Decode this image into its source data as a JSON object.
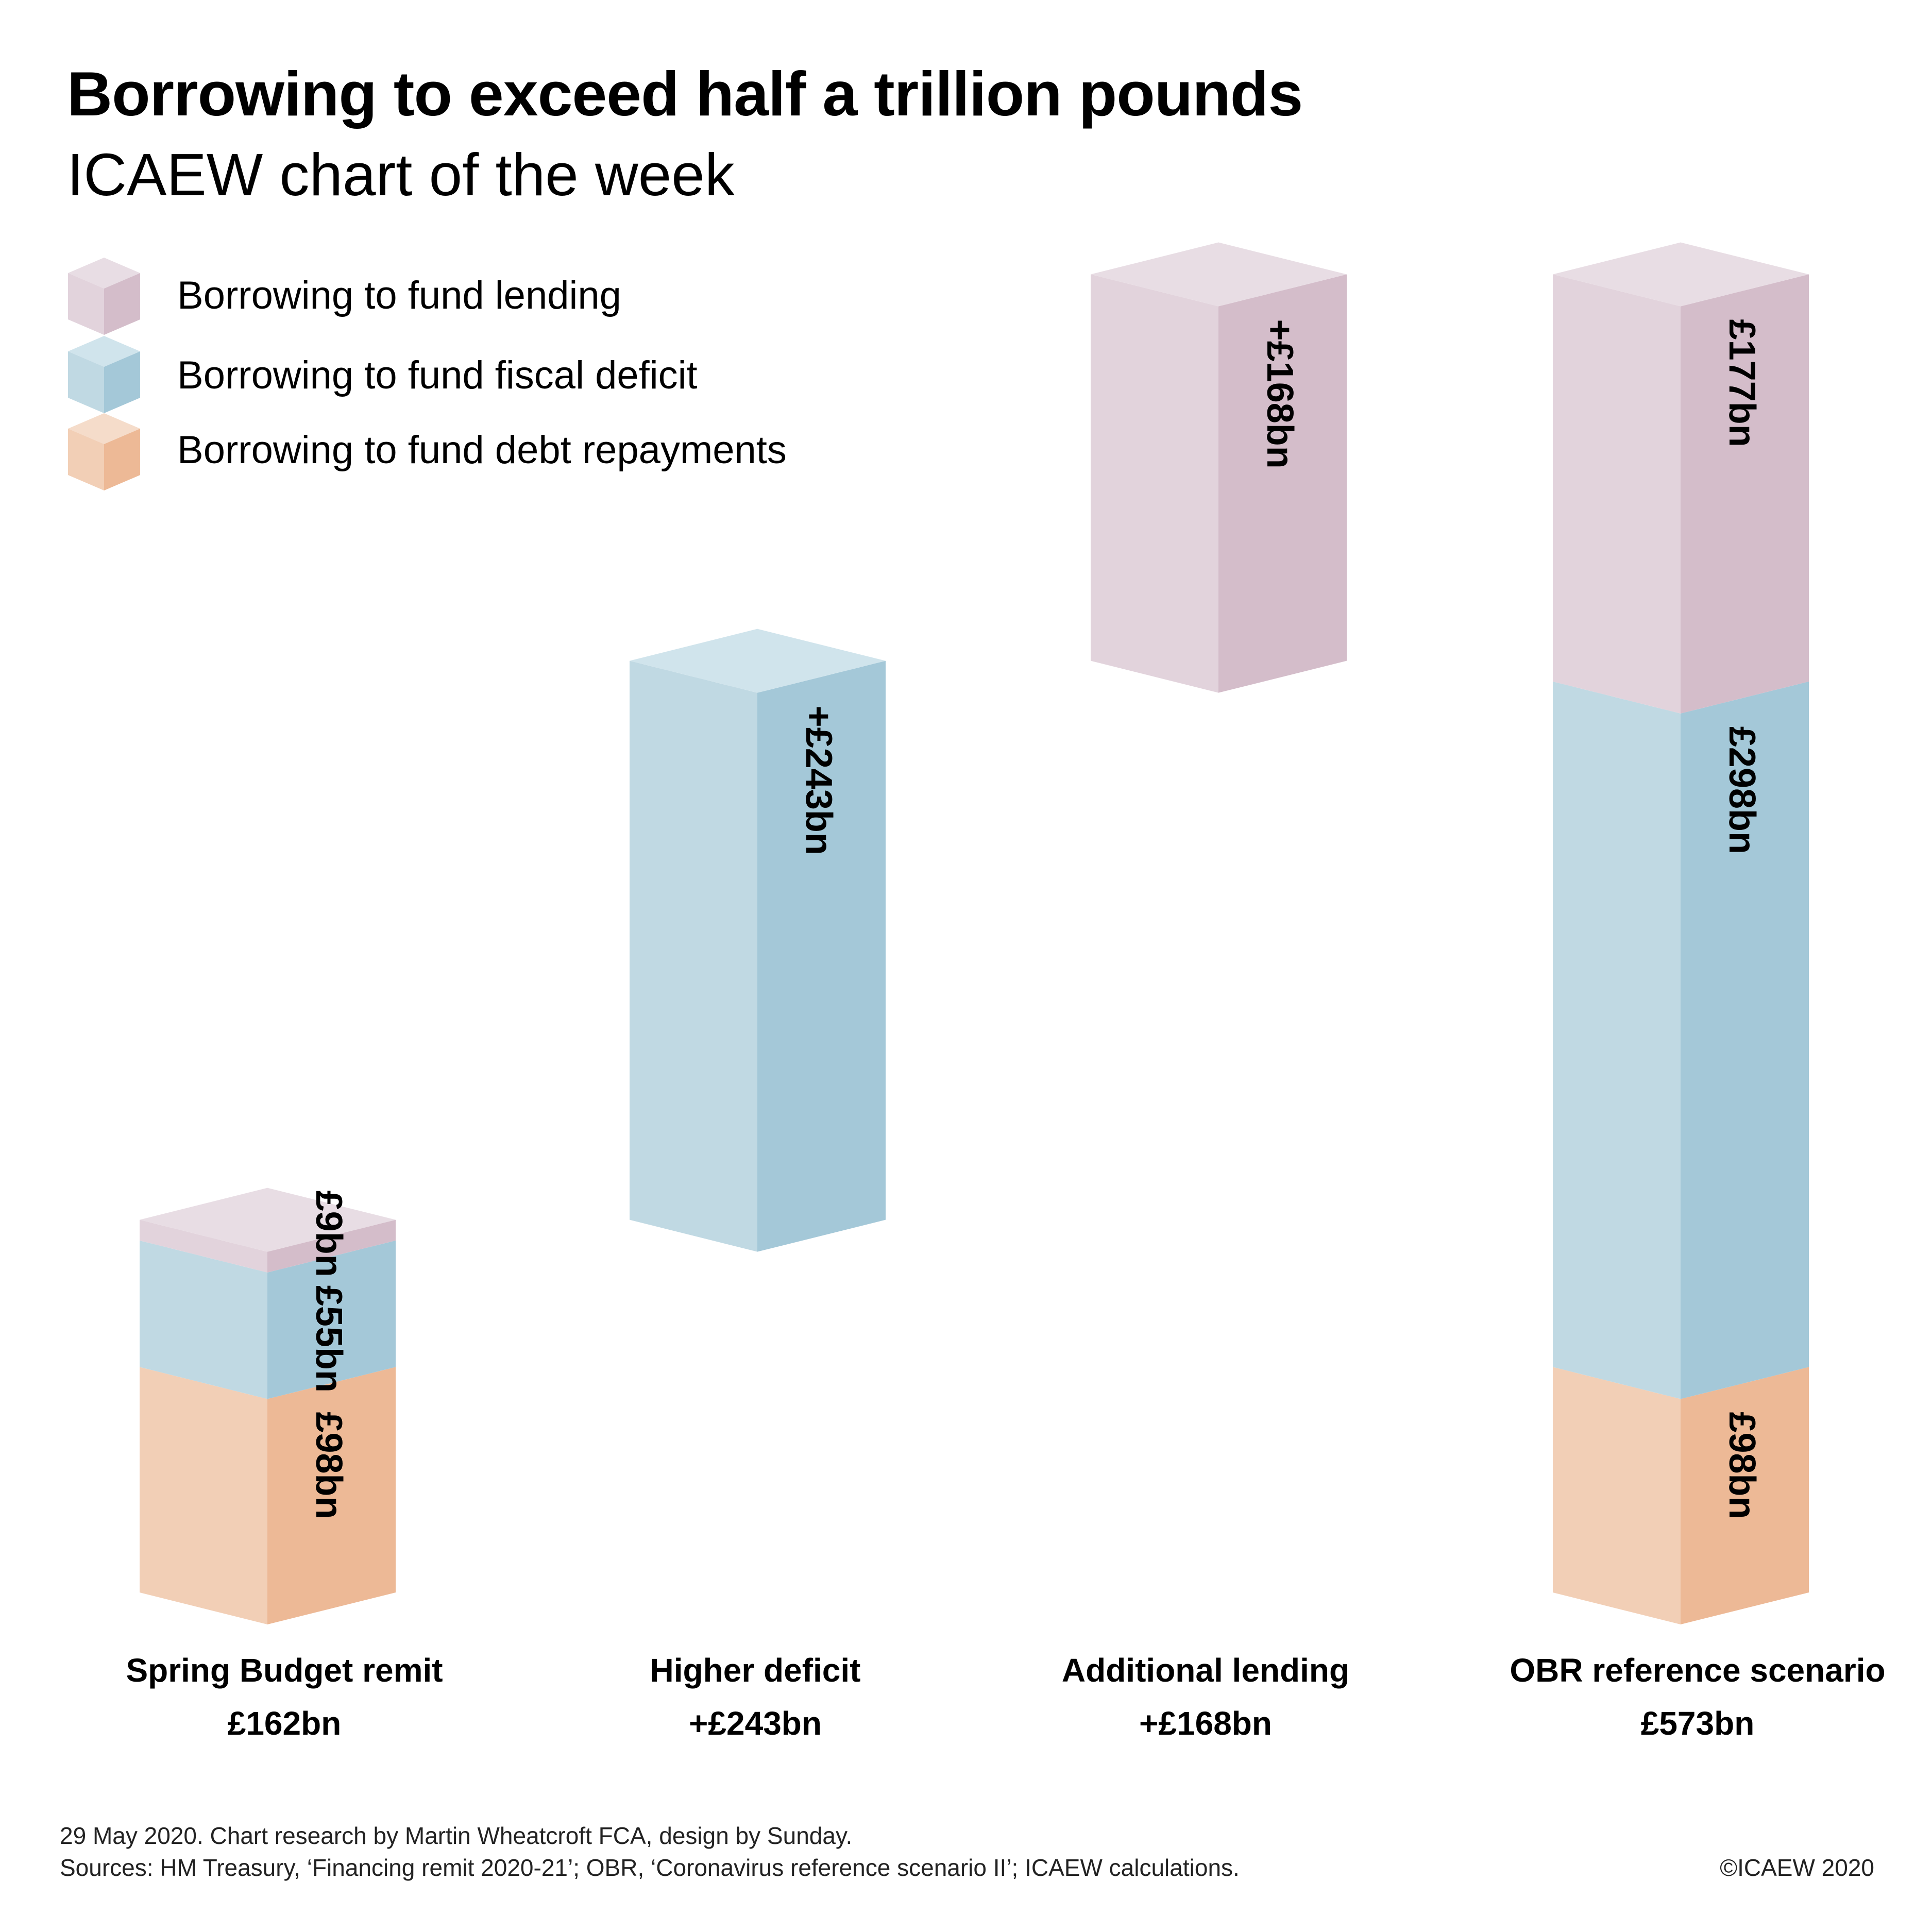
{
  "header": {
    "title": "Borrowing to exceed half a trillion pounds",
    "subtitle": "ICAEW chart of the week"
  },
  "colors": {
    "lending": {
      "top": "#e8dde4",
      "left": "#e2d3dc",
      "right": "#d4bdca"
    },
    "fiscal": {
      "top": "#d0e4ec",
      "left": "#c0d9e3",
      "right": "#a4c8d8"
    },
    "debt": {
      "top": "#f5dcca",
      "left": "#f2cfb6",
      "right": "#edb996"
    }
  },
  "chart_data": {
    "type": "bar",
    "subtype": "3d-waterfall-stacked",
    "title": "Borrowing to exceed half a trillion pounds",
    "legend": [
      {
        "key": "lending",
        "label": "Borrowing to fund lending"
      },
      {
        "key": "fiscal",
        "label": "Borrowing to fund fiscal deficit"
      },
      {
        "key": "debt",
        "label": "Borrowing to fund debt repayments"
      }
    ],
    "legend_position": "top-left",
    "unit": "£bn",
    "bars": [
      {
        "category": "Spring Budget remit",
        "total_label": "£162bn",
        "segments": [
          {
            "series": "debt",
            "base": 0,
            "value": 98,
            "label": "£98bn"
          },
          {
            "series": "fiscal",
            "base": 98,
            "value": 55,
            "label": "£55bn"
          },
          {
            "series": "lending",
            "base": 153,
            "value": 9,
            "label": "£9bn"
          }
        ]
      },
      {
        "category": "Higher deficit",
        "total_label": "+£243bn",
        "segments": [
          {
            "series": "fiscal",
            "base": 162,
            "value": 243,
            "label": "+£243bn"
          }
        ]
      },
      {
        "category": "Additional lending",
        "total_label": "+£168bn",
        "segments": [
          {
            "series": "lending",
            "base": 405,
            "value": 168,
            "label": "+£168bn"
          }
        ]
      },
      {
        "category": "OBR reference scenario",
        "total_label": "£573bn",
        "segments": [
          {
            "series": "debt",
            "base": 0,
            "value": 98,
            "label": "£98bn"
          },
          {
            "series": "fiscal",
            "base": 98,
            "value": 298,
            "label": "£298bn"
          },
          {
            "series": "lending",
            "base": 396,
            "value": 177,
            "label": "£177bn"
          }
        ]
      }
    ]
  },
  "footer": {
    "line1": "29 May 2020.   Chart research by Martin Wheatcroft FCA, design by Sunday.",
    "line2": "Sources: HM Treasury, ‘Financing remit 2020-21’; OBR, ‘Coronavirus reference scenario II’; ICAEW calculations.",
    "copyright": "©ICAEW 2020"
  }
}
